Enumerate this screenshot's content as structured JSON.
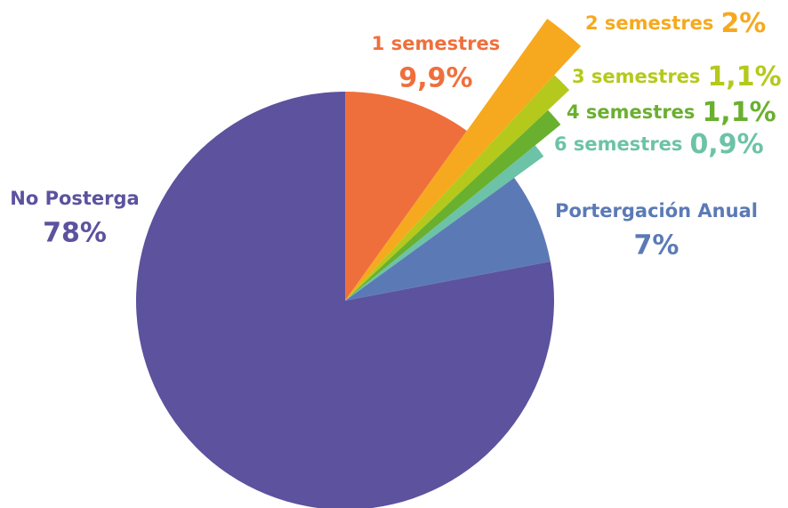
{
  "chart_data": {
    "type": "pie",
    "categories": [
      "1 semestres",
      "2 semestres",
      "3 semestres",
      "4 semestres",
      "6 semestres",
      "Portergación Anual",
      "No Posterga"
    ],
    "values": [
      9.9,
      2,
      1.1,
      1.1,
      0.9,
      7,
      78
    ],
    "value_labels": [
      "9,9%",
      "2%",
      "1,1%",
      "1,1%",
      "0,9%",
      "7%",
      "78%"
    ],
    "colors": [
      "#ef6f3c",
      "#f6a91f",
      "#b5c91c",
      "#6ab02f",
      "#6cc3a7",
      "#5b7ab5",
      "#5c529e"
    ]
  }
}
